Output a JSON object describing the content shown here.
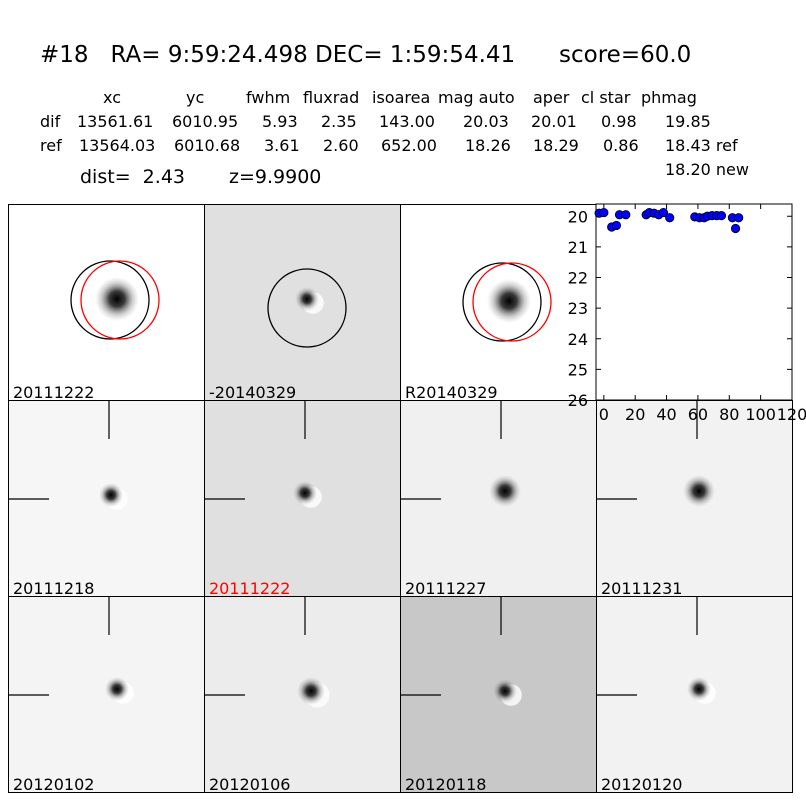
{
  "header": {
    "title": "#18   RA= 9:59:24.498 DEC= 1:59:54.41      score=60.0",
    "columns": [
      "xc",
      "yc",
      "fwhm",
      "fluxrad",
      "isoarea",
      "mag auto",
      "aper",
      "cl star",
      "phmag"
    ],
    "rows": [
      {
        "label": "dif",
        "values": [
          "13561.61",
          "6010.95",
          "5.93",
          "2.35",
          "143.00",
          "20.03",
          "20.01",
          "0.98",
          "19.85"
        ]
      },
      {
        "label": "ref",
        "values": [
          "13564.03",
          "6010.68",
          "3.61",
          "2.60",
          "652.00",
          "18.26",
          "18.29",
          "0.86",
          "18.43 ref"
        ]
      }
    ],
    "extra_phmag": "18.20 new",
    "dist_text": "dist=  2.43",
    "z_text": "z=9.9900"
  },
  "panels": [
    {
      "label": "20111222",
      "bg": "#ffffff",
      "label_color": "#000000",
      "kind": "circles2"
    },
    {
      "label": "-20140329",
      "bg": "#e0e0e0",
      "label_color": "#000000",
      "kind": "circle1"
    },
    {
      "label": "R20140329",
      "bg": "#ffffff",
      "label_color": "#000000",
      "kind": "circles2"
    },
    {
      "label": "20111218",
      "bg": "#f6f6f6",
      "label_color": "#000000",
      "kind": "cross"
    },
    {
      "label": "20111222",
      "bg": "#e0e0e0",
      "label_color": "#ff0000",
      "kind": "cross"
    },
    {
      "label": "20111227",
      "bg": "#f0f0f0",
      "label_color": "#000000",
      "kind": "cross"
    },
    {
      "label": "20111231",
      "bg": "#f2f2f2",
      "label_color": "#000000",
      "kind": "cross"
    },
    {
      "label": "20120102",
      "bg": "#f4f4f4",
      "label_color": "#000000",
      "kind": "cross"
    },
    {
      "label": "20120106",
      "bg": "#ececec",
      "label_color": "#000000",
      "kind": "cross"
    },
    {
      "label": "20120118",
      "bg": "#c8c8c8",
      "label_color": "#000000",
      "kind": "cross"
    },
    {
      "label": "20120120",
      "bg": "#f2f2f2",
      "label_color": "#000000",
      "kind": "cross"
    }
  ],
  "chart_data": {
    "type": "scatter",
    "title": "",
    "xlabel": "",
    "ylabel": "",
    "xlim": [
      -5,
      120
    ],
    "ylim": [
      26,
      19.6
    ],
    "x_ticks": [
      "0",
      "20",
      "40",
      "60",
      "80",
      "100",
      "120"
    ],
    "y_ticks": [
      "20",
      "21",
      "22",
      "23",
      "24",
      "25",
      "26"
    ],
    "marker_color": "#0000ff",
    "points": [
      {
        "x": -3,
        "y": 19.9
      },
      {
        "x": 0,
        "y": 19.88
      },
      {
        "x": 5,
        "y": 20.35
      },
      {
        "x": 8,
        "y": 20.3
      },
      {
        "x": 10,
        "y": 19.95
      },
      {
        "x": 14,
        "y": 19.95
      },
      {
        "x": 27,
        "y": 19.95
      },
      {
        "x": 29,
        "y": 19.88
      },
      {
        "x": 32,
        "y": 19.9
      },
      {
        "x": 35,
        "y": 19.95
      },
      {
        "x": 38,
        "y": 19.88
      },
      {
        "x": 42,
        "y": 20.05
      },
      {
        "x": 58,
        "y": 20.02
      },
      {
        "x": 61,
        "y": 20.05
      },
      {
        "x": 64,
        "y": 20.05
      },
      {
        "x": 66,
        "y": 20.0
      },
      {
        "x": 69,
        "y": 19.98
      },
      {
        "x": 72,
        "y": 19.98
      },
      {
        "x": 75,
        "y": 19.98
      },
      {
        "x": 82,
        "y": 20.05
      },
      {
        "x": 84,
        "y": 20.4
      },
      {
        "x": 86,
        "y": 20.05
      }
    ]
  }
}
